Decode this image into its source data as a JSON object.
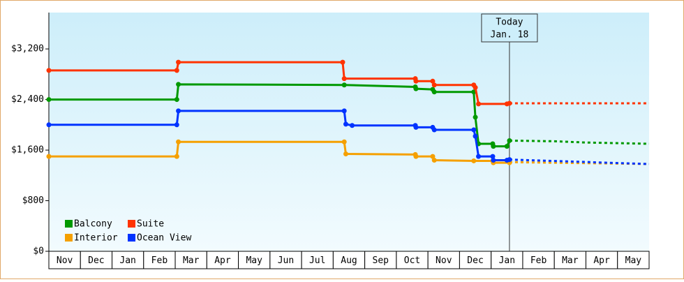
{
  "chart_data": {
    "type": "line",
    "categories": [
      "Nov",
      "Dec",
      "Jan",
      "Feb",
      "Mar",
      "Apr",
      "May",
      "Jun",
      "Jul",
      "Aug",
      "Sep",
      "Oct",
      "Nov",
      "Dec",
      "Jan",
      "Feb",
      "Mar",
      "Apr",
      "May"
    ],
    "xlim": [
      0,
      19
    ],
    "ylim": [
      0,
      3775
    ],
    "yticks": [
      {
        "value": 0,
        "label": "$0"
      },
      {
        "value": 800,
        "label": "$800"
      },
      {
        "value": 1600,
        "label": "$1,600"
      },
      {
        "value": 2400,
        "label": "$2,400"
      },
      {
        "value": 3200,
        "label": "$3,200"
      }
    ],
    "grid": false,
    "legend": "lower left",
    "annotation": {
      "x": 14.58,
      "label": [
        "Today",
        "Jan. 18"
      ]
    },
    "series": [
      {
        "name": "Balcony",
        "color": "#009900",
        "x": [
          0,
          4.05,
          4.1,
          9.35,
          11.6,
          11.62,
          12.15,
          12.2,
          13.45,
          13.5,
          13.6,
          14.05,
          14.07,
          14.5,
          14.58
        ],
        "values": [
          2400,
          2400,
          2640,
          2630,
          2600,
          2570,
          2560,
          2520,
          2520,
          2120,
          1700,
          1700,
          1660,
          1660,
          1750
        ],
        "forecast": {
          "x": [
            14.58,
            16,
            17,
            19
          ],
          "values": [
            1750,
            1740,
            1720,
            1700
          ]
        }
      },
      {
        "name": "Suite",
        "color": "#ff3300",
        "x": [
          0,
          4.05,
          4.1,
          9.3,
          9.35,
          11.6,
          11.62,
          12.15,
          12.2,
          13.45,
          13.5,
          13.6,
          14.5,
          14.58
        ],
        "values": [
          2860,
          2860,
          2990,
          2990,
          2730,
          2730,
          2690,
          2690,
          2630,
          2630,
          2590,
          2330,
          2330,
          2340
        ],
        "forecast": {
          "x": [
            14.58,
            19
          ],
          "values": [
            2340,
            2340
          ]
        }
      },
      {
        "name": "Interior",
        "color": "#f5a000",
        "x": [
          0,
          4.05,
          4.1,
          9.35,
          9.4,
          11.6,
          11.62,
          12.15,
          12.2,
          13.45,
          14.05,
          14.07,
          14.58
        ],
        "values": [
          1500,
          1500,
          1730,
          1730,
          1540,
          1530,
          1500,
          1500,
          1440,
          1430,
          1430,
          1400,
          1400
        ],
        "forecast": {
          "x": [
            14.58,
            19
          ],
          "values": [
            1410,
            1380
          ]
        }
      },
      {
        "name": "Ocean View",
        "color": "#0033ff",
        "x": [
          0,
          4.05,
          4.1,
          9.35,
          9.4,
          9.6,
          11.6,
          11.62,
          12.15,
          12.2,
          13.45,
          13.5,
          13.6,
          14.05,
          14.07,
          14.5,
          14.58
        ],
        "values": [
          2000,
          2000,
          2220,
          2220,
          2010,
          1990,
          1990,
          1960,
          1960,
          1920,
          1920,
          1820,
          1500,
          1500,
          1440,
          1440,
          1450
        ],
        "forecast": {
          "x": [
            14.58,
            19
          ],
          "values": [
            1450,
            1380
          ]
        }
      }
    ]
  }
}
